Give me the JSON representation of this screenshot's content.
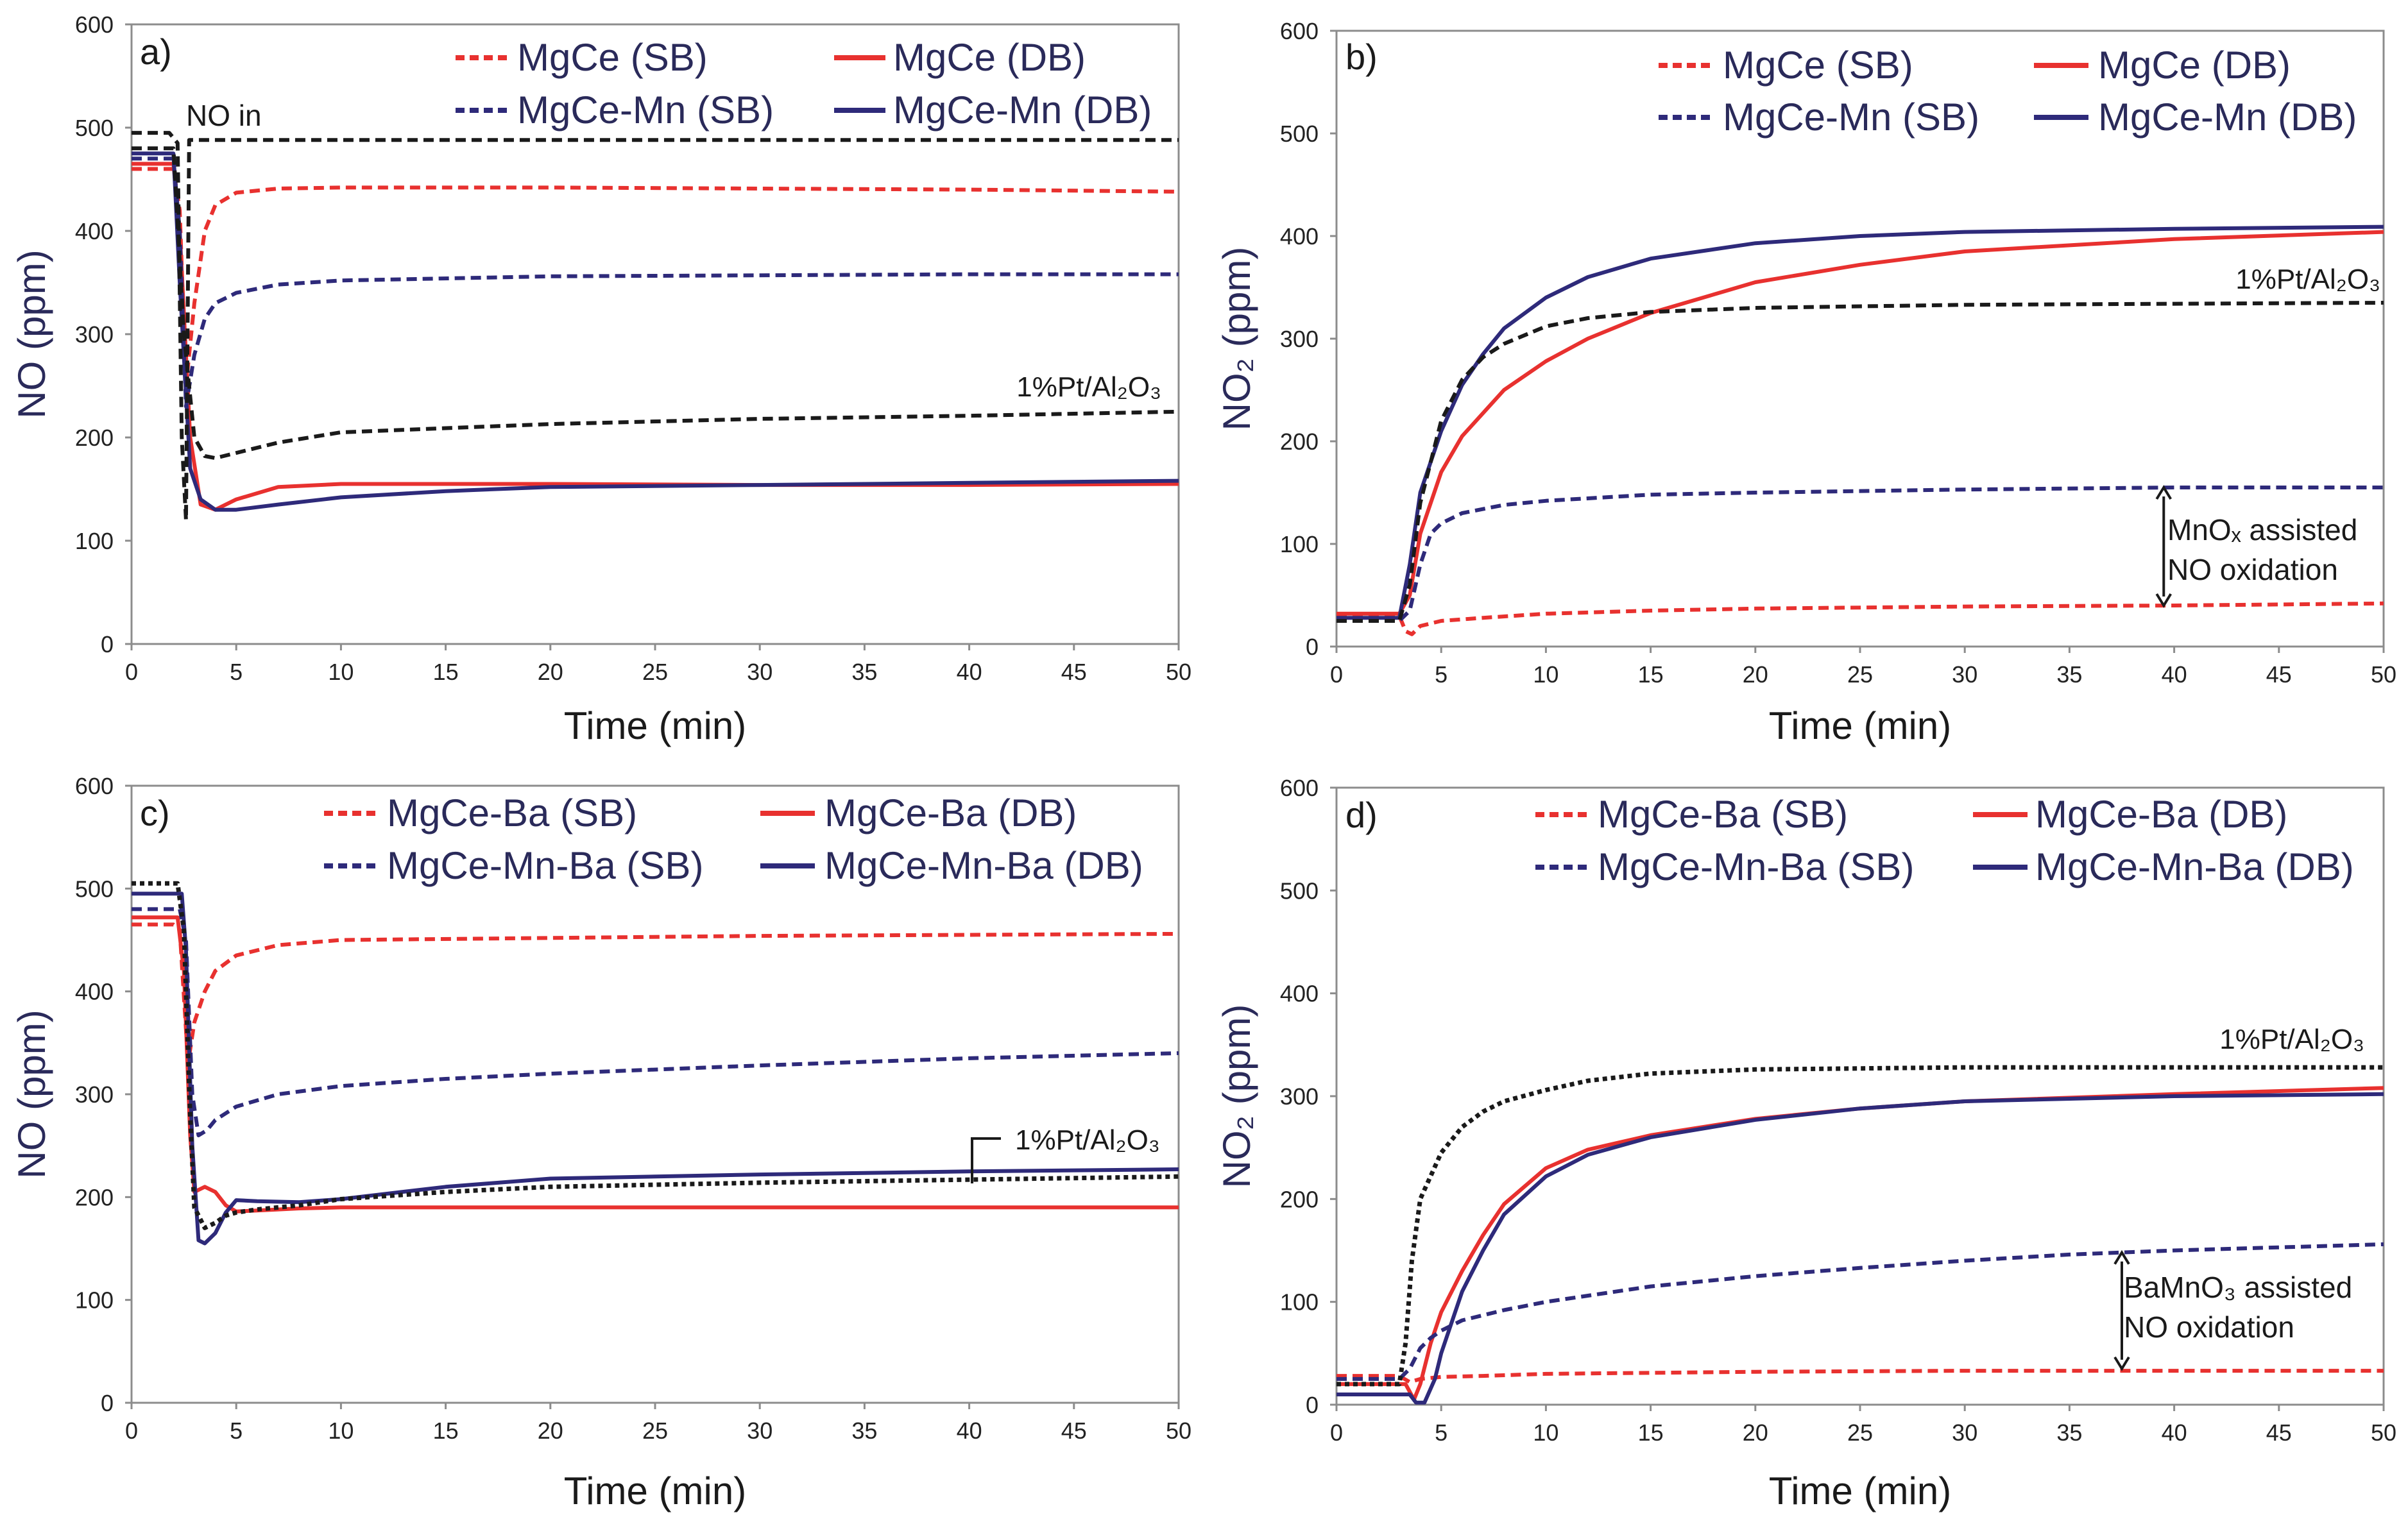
{
  "chart_data": [
    {
      "type": "line",
      "panel": "a)",
      "xlabel": "Time (min)",
      "ylabel": "NO (ppm)",
      "xlim": [
        0,
        50
      ],
      "ylim": [
        0,
        600
      ],
      "xticks": [
        0,
        5,
        10,
        15,
        20,
        25,
        30,
        35,
        40,
        45,
        50
      ],
      "yticks": [
        0,
        100,
        200,
        300,
        400,
        500,
        600
      ],
      "legend": [
        {
          "label": "MgCe (SB)",
          "color": "#e8312f",
          "dash": true
        },
        {
          "label": "MgCe (DB)",
          "color": "#e8312f",
          "dash": false
        },
        {
          "label": "MgCe-Mn (SB)",
          "color": "#2e2a7a",
          "dash": true
        },
        {
          "label": "MgCe-Mn (DB)",
          "color": "#2e2a7a",
          "dash": false
        }
      ],
      "annotations": {
        "no_in": "NO in",
        "ref": "1%Pt/Al₂O₃"
      },
      "series": [
        {
          "name": "MgCe (SB)",
          "color": "#e8312f",
          "style": "dash",
          "x": [
            0,
            2,
            2.3,
            2.6,
            3,
            3.5,
            4,
            5,
            7,
            10,
            20,
            30,
            40,
            50
          ],
          "y": [
            460,
            460,
            420,
            250,
            330,
            400,
            425,
            437,
            441,
            442,
            442,
            441,
            440,
            438
          ]
        },
        {
          "name": "MgCe (DB)",
          "color": "#e8312f",
          "style": "solid",
          "x": [
            0,
            2,
            2.3,
            2.8,
            3.3,
            4,
            5,
            7,
            10,
            20,
            30,
            40,
            50
          ],
          "y": [
            465,
            465,
            400,
            200,
            135,
            130,
            140,
            152,
            155,
            155,
            154,
            154,
            155
          ]
        },
        {
          "name": "MgCe-Mn (SB)",
          "color": "#2e2a7a",
          "style": "dash",
          "x": [
            0,
            2,
            2.3,
            2.6,
            3,
            3.5,
            4,
            5,
            7,
            10,
            20,
            30,
            40,
            50
          ],
          "y": [
            470,
            470,
            400,
            230,
            280,
            315,
            330,
            340,
            348,
            352,
            356,
            357,
            358,
            358
          ]
        },
        {
          "name": "MgCe-Mn (DB)",
          "color": "#2e2a7a",
          "style": "solid",
          "x": [
            0,
            2,
            2.3,
            2.8,
            3.3,
            4,
            5,
            7,
            10,
            15,
            20,
            30,
            40,
            50
          ],
          "y": [
            475,
            475,
            350,
            170,
            140,
            130,
            130,
            135,
            142,
            148,
            152,
            154,
            156,
            158
          ]
        },
        {
          "name": "NO in",
          "color": "#1a1a1a",
          "style": "dash",
          "x": [
            0,
            1.8,
            2.2,
            2.4,
            2.6,
            2.75,
            3,
            50
          ],
          "y": [
            495,
            495,
            485,
            200,
            120,
            488,
            488,
            488
          ]
        },
        {
          "name": "1%Pt/Al₂O₃",
          "color": "#1a1a1a",
          "style": "dash",
          "x": [
            0,
            2,
            2.5,
            3,
            3.5,
            4,
            5,
            7,
            10,
            20,
            30,
            40,
            50
          ],
          "y": [
            480,
            480,
            300,
            200,
            182,
            180,
            185,
            195,
            205,
            213,
            218,
            221,
            225
          ]
        }
      ]
    },
    {
      "type": "line",
      "panel": "b)",
      "xlabel": "Time (min)",
      "ylabel": "NO₂ (ppm)",
      "xlim": [
        0,
        50
      ],
      "ylim": [
        0,
        600
      ],
      "xticks": [
        0,
        5,
        10,
        15,
        20,
        25,
        30,
        35,
        40,
        45,
        50
      ],
      "yticks": [
        0,
        100,
        200,
        300,
        400,
        500,
        600
      ],
      "legend": [
        {
          "label": "MgCe (SB)",
          "color": "#e8312f",
          "dash": true
        },
        {
          "label": "MgCe (DB)",
          "color": "#e8312f",
          "dash": false
        },
        {
          "label": "MgCe-Mn (SB)",
          "color": "#2e2a7a",
          "dash": true
        },
        {
          "label": "MgCe-Mn (DB)",
          "color": "#2e2a7a",
          "dash": false
        }
      ],
      "annotations": {
        "ref": "1%Pt/Al₂O₃",
        "assist_line1": "MnOₓ assisted",
        "assist_line2": "NO oxidation",
        "assist_x": 39.5,
        "assist_y1": 155,
        "assist_y2": 40
      },
      "series": [
        {
          "name": "MgCe (SB)",
          "color": "#e8312f",
          "style": "dash",
          "x": [
            0,
            3,
            3.3,
            3.6,
            4,
            5,
            7,
            10,
            15,
            20,
            30,
            40,
            50
          ],
          "y": [
            30,
            30,
            15,
            12,
            20,
            25,
            28,
            32,
            35,
            37,
            39,
            40,
            42
          ]
        },
        {
          "name": "MgCe (DB)",
          "color": "#e8312f",
          "style": "solid",
          "x": [
            0,
            3,
            3.5,
            4,
            5,
            6,
            8,
            10,
            12,
            15,
            20,
            25,
            30,
            40,
            50
          ],
          "y": [
            32,
            32,
            50,
            110,
            170,
            205,
            250,
            278,
            300,
            325,
            355,
            372,
            385,
            397,
            404
          ]
        },
        {
          "name": "MgCe-Mn (SB)",
          "color": "#2e2a7a",
          "style": "dash",
          "x": [
            0,
            3,
            3.5,
            4,
            4.5,
            5,
            6,
            8,
            10,
            15,
            20,
            30,
            40,
            50
          ],
          "y": [
            25,
            25,
            35,
            80,
            110,
            120,
            130,
            138,
            142,
            148,
            150,
            153,
            155,
            155
          ]
        },
        {
          "name": "MgCe-Mn (DB)",
          "color": "#2e2a7a",
          "style": "solid",
          "x": [
            0,
            3,
            3.5,
            4,
            5,
            6,
            7,
            8,
            10,
            12,
            15,
            20,
            25,
            30,
            40,
            50
          ],
          "y": [
            28,
            28,
            80,
            150,
            210,
            255,
            285,
            310,
            340,
            360,
            378,
            393,
            400,
            404,
            407,
            409
          ]
        },
        {
          "name": "1%Pt/Al₂O₃",
          "color": "#1a1a1a",
          "style": "dash",
          "x": [
            0,
            3,
            3.5,
            4,
            5,
            6,
            7,
            8,
            10,
            12,
            15,
            20,
            30,
            40,
            50
          ],
          "y": [
            25,
            25,
            60,
            140,
            220,
            260,
            282,
            295,
            312,
            320,
            326,
            330,
            333,
            334,
            335
          ]
        }
      ]
    },
    {
      "type": "line",
      "panel": "c)",
      "xlabel": "Time (min)",
      "ylabel": "NO (ppm)",
      "xlim": [
        0,
        50
      ],
      "ylim": [
        0,
        600
      ],
      "xticks": [
        0,
        5,
        10,
        15,
        20,
        25,
        30,
        35,
        40,
        45,
        50
      ],
      "yticks": [
        0,
        100,
        200,
        300,
        400,
        500,
        600
      ],
      "legend": [
        {
          "label": "MgCe-Ba (SB)",
          "color": "#e8312f",
          "dash": true
        },
        {
          "label": "MgCe-Ba (DB)",
          "color": "#e8312f",
          "dash": false
        },
        {
          "label": "MgCe-Mn-Ba (SB)",
          "color": "#2e2a7a",
          "dash": true
        },
        {
          "label": "MgCe-Mn-Ba (DB)",
          "color": "#2e2a7a",
          "dash": false
        }
      ],
      "annotations": {
        "ref": "1%Pt/Al₂O₃"
      },
      "series": [
        {
          "name": "MgCe-Ba (SB)",
          "color": "#e8312f",
          "style": "dash",
          "x": [
            0,
            2,
            2.3,
            2.7,
            3,
            3.5,
            4,
            5,
            7,
            10,
            20,
            30,
            40,
            50
          ],
          "y": [
            465,
            465,
            460,
            330,
            370,
            400,
            420,
            435,
            445,
            450,
            452,
            454,
            455,
            456
          ]
        },
        {
          "name": "MgCe-Ba (DB)",
          "color": "#e8312f",
          "style": "solid",
          "x": [
            0,
            2.2,
            2.5,
            2.8,
            3,
            3.5,
            4,
            4.5,
            5,
            6,
            8,
            10,
            20,
            30,
            40,
            50
          ],
          "y": [
            472,
            472,
            420,
            260,
            205,
            210,
            205,
            192,
            186,
            187,
            189,
            190,
            190,
            190,
            190,
            190
          ]
        },
        {
          "name": "MgCe-Mn-Ba (SB)",
          "color": "#2e2a7a",
          "style": "dash",
          "x": [
            0,
            2.3,
            2.6,
            2.9,
            3.2,
            3.6,
            4,
            5,
            7,
            10,
            15,
            20,
            30,
            40,
            50
          ],
          "y": [
            480,
            480,
            450,
            300,
            260,
            265,
            275,
            288,
            300,
            308,
            315,
            320,
            328,
            335,
            340
          ]
        },
        {
          "name": "MgCe-Mn-Ba (DB)",
          "color": "#2e2a7a",
          "style": "solid",
          "x": [
            0,
            2.4,
            2.6,
            2.9,
            3.2,
            3.5,
            4,
            4.5,
            5,
            6,
            8,
            10,
            15,
            20,
            30,
            40,
            50
          ],
          "y": [
            495,
            495,
            440,
            250,
            158,
            155,
            165,
            185,
            197,
            196,
            195,
            198,
            210,
            218,
            222,
            225,
            227
          ]
        },
        {
          "name": "1%Pt/Al₂O₃",
          "color": "#1a1a1a",
          "style": "dot",
          "x": [
            0,
            2.2,
            2.5,
            2.8,
            3,
            3.5,
            4,
            4.5,
            5,
            6,
            8,
            10,
            15,
            20,
            30,
            40,
            50
          ],
          "y": [
            505,
            505,
            460,
            280,
            190,
            170,
            175,
            182,
            185,
            188,
            192,
            198,
            205,
            210,
            214,
            217,
            220
          ]
        }
      ]
    },
    {
      "type": "line",
      "panel": "d)",
      "xlabel": "Time (min)",
      "ylabel": "NO₂ (ppm)",
      "xlim": [
        0,
        50
      ],
      "ylim": [
        0,
        600
      ],
      "xticks": [
        0,
        5,
        10,
        15,
        20,
        25,
        30,
        35,
        40,
        45,
        50
      ],
      "yticks": [
        0,
        100,
        200,
        300,
        400,
        500,
        600
      ],
      "legend": [
        {
          "label": "MgCe-Ba (SB)",
          "color": "#e8312f",
          "dash": true
        },
        {
          "label": "MgCe-Ba (DB)",
          "color": "#e8312f",
          "dash": false
        },
        {
          "label": "MgCe-Mn-Ba (SB)",
          "color": "#2e2a7a",
          "dash": true
        },
        {
          "label": "MgCe-Mn-Ba (DB)",
          "color": "#2e2a7a",
          "dash": false
        }
      ],
      "annotations": {
        "ref": "1%Pt/Al₂O₃",
        "assist_line1": "BaMnO₃ assisted",
        "assist_line2": "NO oxidation",
        "assist_x": 37.5,
        "assist_y1": 148,
        "assist_y2": 35
      },
      "series": [
        {
          "name": "MgCe-Ba (SB)",
          "color": "#e8312f",
          "style": "dash",
          "x": [
            0,
            3,
            3.5,
            4,
            5,
            7,
            10,
            15,
            20,
            30,
            40,
            50
          ],
          "y": [
            28,
            28,
            22,
            25,
            27,
            28,
            30,
            31,
            32,
            33,
            33,
            33
          ]
        },
        {
          "name": "MgCe-Ba (DB)",
          "color": "#e8312f",
          "style": "solid",
          "x": [
            0,
            3.3,
            3.7,
            4,
            4.5,
            5,
            6,
            7,
            8,
            10,
            12,
            15,
            20,
            25,
            30,
            40,
            50
          ],
          "y": [
            20,
            20,
            5,
            20,
            60,
            90,
            130,
            165,
            195,
            230,
            248,
            262,
            278,
            288,
            295,
            302,
            308
          ]
        },
        {
          "name": "MgCe-Mn-Ba (SB)",
          "color": "#2e2a7a",
          "style": "dash",
          "x": [
            0,
            3,
            3.5,
            4,
            4.5,
            5,
            6,
            8,
            10,
            15,
            20,
            25,
            30,
            35,
            40,
            45,
            50
          ],
          "y": [
            25,
            25,
            35,
            55,
            65,
            72,
            82,
            92,
            100,
            115,
            125,
            133,
            140,
            146,
            150,
            153,
            156
          ]
        },
        {
          "name": "MgCe-Mn-Ba (DB)",
          "color": "#2e2a7a",
          "style": "solid",
          "x": [
            0,
            3.5,
            3.8,
            4.2,
            4.7,
            5,
            6,
            7,
            8,
            10,
            12,
            15,
            20,
            25,
            30,
            40,
            50
          ],
          "y": [
            10,
            10,
            2,
            2,
            25,
            50,
            110,
            150,
            185,
            222,
            243,
            260,
            277,
            288,
            295,
            300,
            302
          ]
        },
        {
          "name": "1%Pt/Al₂O₃",
          "color": "#1a1a1a",
          "style": "dot",
          "x": [
            0,
            3,
            3.3,
            3.6,
            4,
            5,
            6,
            7,
            8,
            10,
            12,
            15,
            20,
            30,
            40,
            50
          ],
          "y": [
            20,
            20,
            60,
            140,
            200,
            245,
            270,
            285,
            295,
            306,
            315,
            322,
            326,
            328,
            328,
            328
          ]
        }
      ]
    }
  ]
}
